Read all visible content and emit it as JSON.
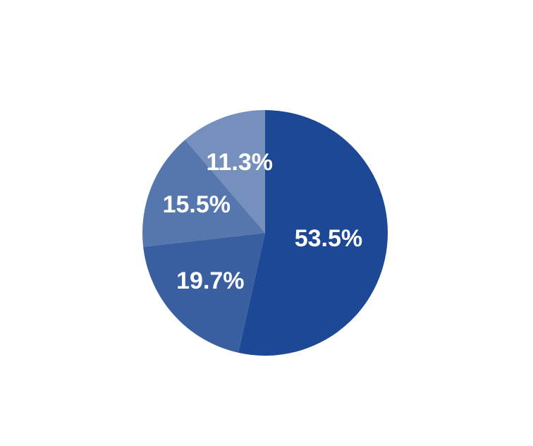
{
  "chart_data": {
    "type": "pie",
    "values": [
      53.5,
      19.7,
      15.5,
      11.3
    ],
    "value_labels": [
      "53.5%",
      "19.7%",
      "15.5%",
      "11.3%"
    ],
    "colors": [
      "#1c4896",
      "#3a5fa1",
      "#5677ad",
      "#7690bd"
    ]
  }
}
